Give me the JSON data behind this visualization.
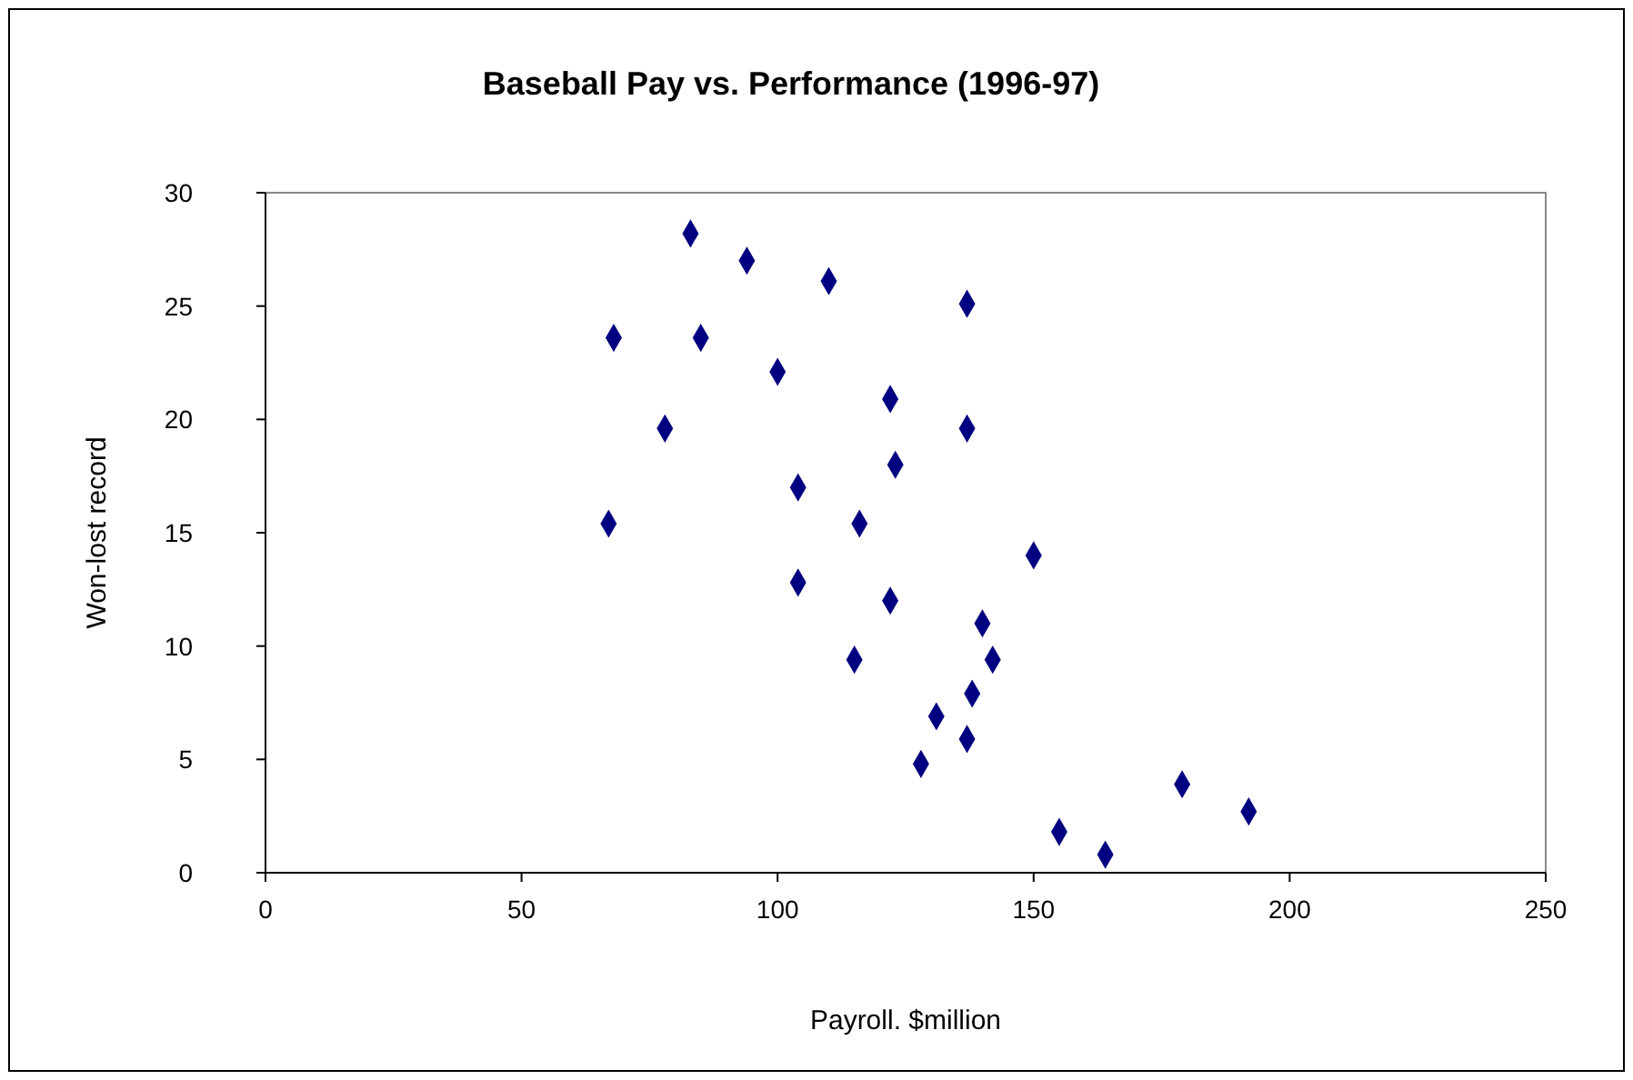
{
  "chart_data": {
    "type": "scatter",
    "title": "Baseball Pay vs. Performance (1996-97)",
    "xlabel": "Payroll. $million",
    "ylabel": "Won-lost record",
    "x": [
      83,
      94,
      110,
      137,
      68,
      85,
      100,
      122,
      78,
      137,
      123,
      104,
      67,
      116,
      150,
      104,
      122,
      140,
      115,
      142,
      138,
      131,
      137,
      128,
      179,
      192,
      155,
      164
    ],
    "values": [
      28.2,
      27,
      26.1,
      25.1,
      23.6,
      23.6,
      22.1,
      20.9,
      19.6,
      19.6,
      18,
      17,
      15.4,
      15.4,
      14,
      12.8,
      12,
      11,
      9.4,
      9.4,
      7.9,
      6.9,
      5.9,
      4.8,
      3.9,
      2.7,
      1.8,
      0.8
    ],
    "color": "#000080",
    "marker": "diamond",
    "grid": false,
    "xlim": [
      0,
      250
    ],
    "xticks": [
      0,
      50,
      100,
      150,
      200,
      250
    ],
    "ylim": [
      0,
      30
    ],
    "yticks": [
      0,
      5,
      10,
      15,
      20,
      25,
      30
    ]
  }
}
